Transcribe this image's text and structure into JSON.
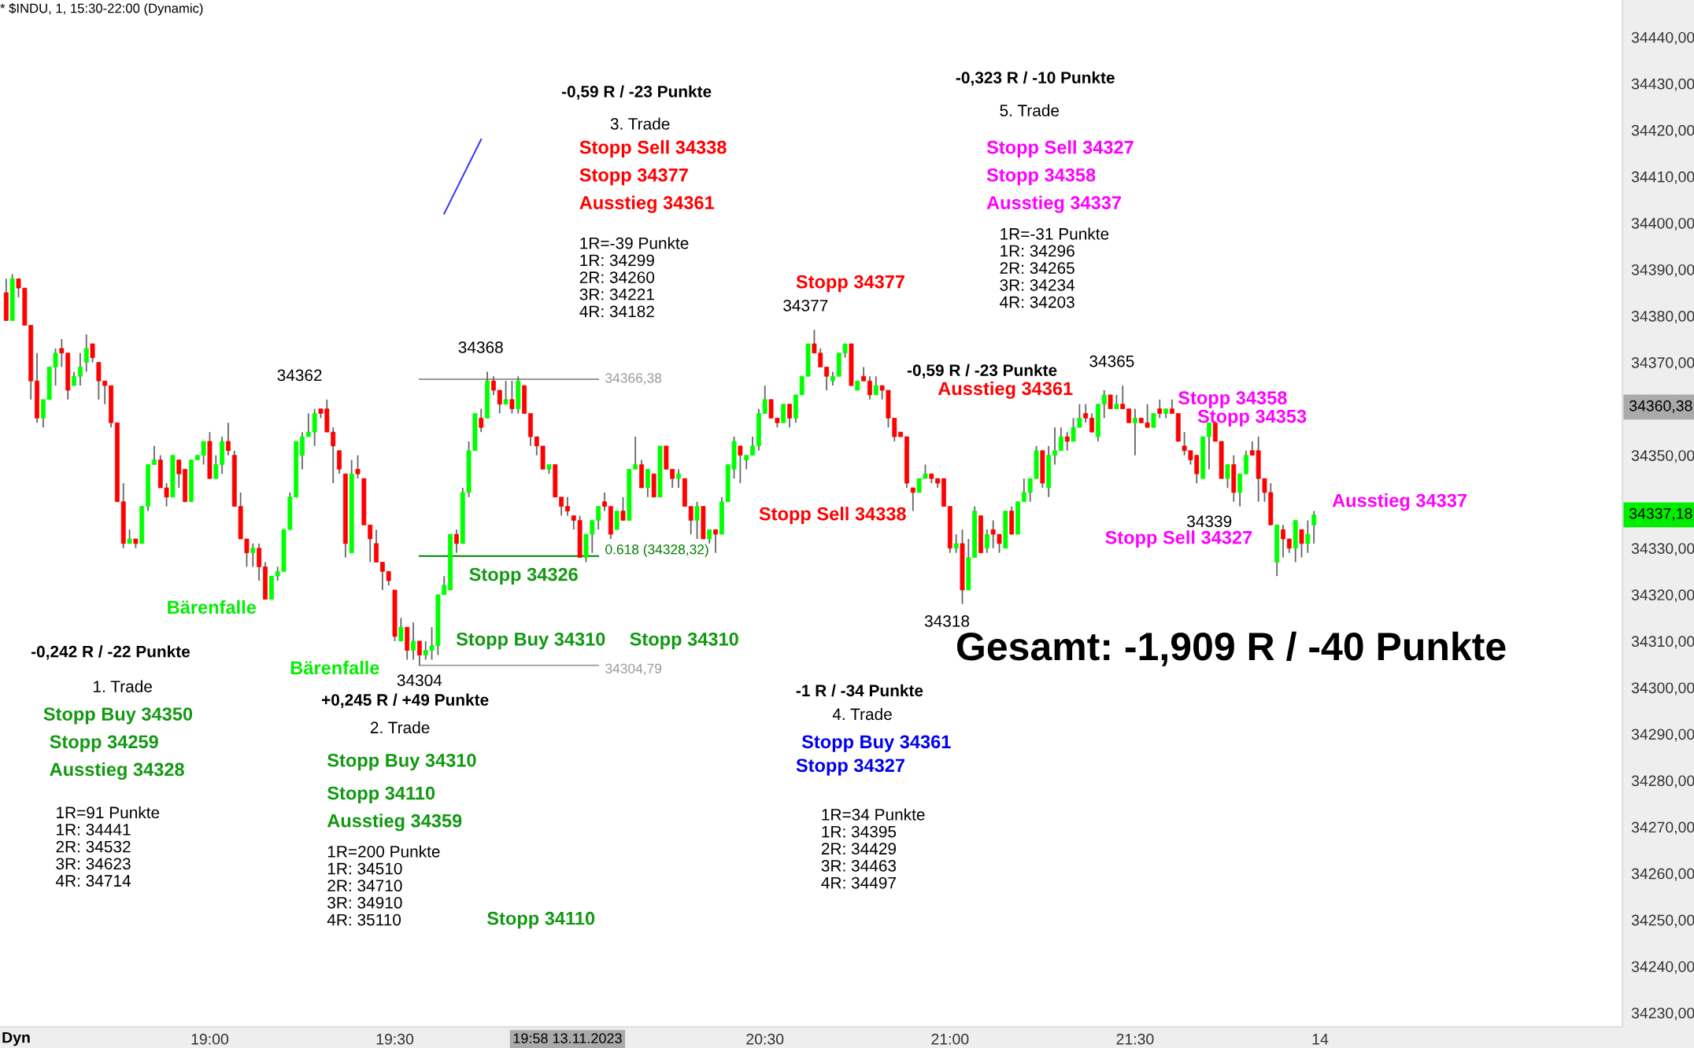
{
  "chart_data": {
    "type": "candlestick",
    "title": "* $INDU, 1, 15:30-22:00 (Dynamic)",
    "x": [
      "2023-11-13T18:27",
      "2023-11-13T18:28",
      "2023-11-13T18:29",
      "2023-11-13T18:30",
      "2023-11-13T18:31",
      "2023-11-13T18:32",
      "2023-11-13T18:33",
      "2023-11-13T18:34",
      "2023-11-13T18:35",
      "2023-11-13T18:36",
      "2023-11-13T18:37",
      "2023-11-13T18:38",
      "2023-11-13T18:39",
      "2023-11-13T18:40",
      "2023-11-13T18:41",
      "2023-11-13T18:42",
      "2023-11-13T18:43",
      "2023-11-13T18:44",
      "2023-11-13T18:45",
      "2023-11-13T18:46",
      "2023-11-13T18:47",
      "2023-11-13T18:48",
      "2023-11-13T18:49",
      "2023-11-13T18:50",
      "2023-11-13T18:51",
      "2023-11-13T18:52",
      "2023-11-13T18:53",
      "2023-11-13T18:54",
      "2023-11-13T18:55",
      "2023-11-13T18:56",
      "2023-11-13T18:57",
      "2023-11-13T18:58",
      "2023-11-13T18:59",
      "2023-11-13T19:00",
      "2023-11-13T19:01",
      "2023-11-13T19:02",
      "2023-11-13T19:03",
      "2023-11-13T19:04",
      "2023-11-13T19:05",
      "2023-11-13T19:06",
      "2023-11-13T19:07",
      "2023-11-13T19:08",
      "2023-11-13T19:09",
      "2023-11-13T19:10",
      "2023-11-13T19:11",
      "2023-11-13T19:12",
      "2023-11-13T19:13",
      "2023-11-13T19:14",
      "2023-11-13T19:15",
      "2023-11-13T19:16",
      "2023-11-13T19:17",
      "2023-11-13T19:18",
      "2023-11-13T19:19",
      "2023-11-13T19:20",
      "2023-11-13T19:21",
      "2023-11-13T19:22",
      "2023-11-13T19:23",
      "2023-11-13T19:24",
      "2023-11-13T19:25",
      "2023-11-13T19:26",
      "2023-11-13T19:27",
      "2023-11-13T19:28",
      "2023-11-13T19:29",
      "2023-11-13T19:30",
      "2023-11-13T19:31",
      "2023-11-13T19:32",
      "2023-11-13T19:33",
      "2023-11-13T19:34",
      "2023-11-13T19:35",
      "2023-11-13T19:36",
      "2023-11-13T19:37",
      "2023-11-13T19:38",
      "2023-11-13T19:39",
      "2023-11-13T19:40",
      "2023-11-13T19:41",
      "2023-11-13T19:42",
      "2023-11-13T19:43",
      "2023-11-13T19:44",
      "2023-11-13T19:45",
      "2023-11-13T19:46",
      "2023-11-13T19:47",
      "2023-11-13T19:48",
      "2023-11-13T19:49",
      "2023-11-13T19:50",
      "2023-11-13T19:51",
      "2023-11-13T19:52",
      "2023-11-13T19:53",
      "2023-11-13T19:54",
      "2023-11-13T19:55",
      "2023-11-13T19:56",
      "2023-11-13T19:57",
      "2023-11-13T19:58",
      "2023-11-13T19:59",
      "2023-11-13T20:00",
      "2023-11-13T20:01",
      "2023-11-13T20:02",
      "2023-11-13T20:03",
      "2023-11-13T20:04",
      "2023-11-13T20:05",
      "2023-11-13T20:06",
      "2023-11-13T20:07",
      "2023-11-13T20:08",
      "2023-11-13T20:09",
      "2023-11-13T20:10",
      "2023-11-13T20:11",
      "2023-11-13T20:12",
      "2023-11-13T20:13",
      "2023-11-13T20:14",
      "2023-11-13T20:15",
      "2023-11-13T20:16",
      "2023-11-13T20:17",
      "2023-11-13T20:18",
      "2023-11-13T20:19",
      "2023-11-13T20:20",
      "2023-11-13T20:21",
      "2023-11-13T20:22",
      "2023-11-13T20:23",
      "2023-11-13T20:24",
      "2023-11-13T20:25",
      "2023-11-13T20:26",
      "2023-11-13T20:27",
      "2023-11-13T20:28",
      "2023-11-13T20:29",
      "2023-11-13T20:30",
      "2023-11-13T20:31",
      "2023-11-13T20:32",
      "2023-11-13T20:33",
      "2023-11-13T20:34",
      "2023-11-13T20:35",
      "2023-11-13T20:36",
      "2023-11-13T20:37",
      "2023-11-13T20:38",
      "2023-11-13T20:39",
      "2023-11-13T20:40",
      "2023-11-13T20:41",
      "2023-11-13T20:42",
      "2023-11-13T20:43",
      "2023-11-13T20:44",
      "2023-11-13T20:45",
      "2023-11-13T20:46",
      "2023-11-13T20:47",
      "2023-11-13T20:48",
      "2023-11-13T20:49",
      "2023-11-13T20:50",
      "2023-11-13T20:51",
      "2023-11-13T20:52",
      "2023-11-13T20:53",
      "2023-11-13T20:54",
      "2023-11-13T20:55",
      "2023-11-13T20:56",
      "2023-11-13T20:57",
      "2023-11-13T20:58",
      "2023-11-13T20:59",
      "2023-11-13T21:00",
      "2023-11-13T21:01",
      "2023-11-13T21:02",
      "2023-11-13T21:03",
      "2023-11-13T21:04",
      "2023-11-13T21:05",
      "2023-11-13T21:06",
      "2023-11-13T21:07",
      "2023-11-13T21:08",
      "2023-11-13T21:09",
      "2023-11-13T21:10",
      "2023-11-13T21:11",
      "2023-11-13T21:12",
      "2023-11-13T21:13",
      "2023-11-13T21:14",
      "2023-11-13T21:15",
      "2023-11-13T21:16",
      "2023-11-13T21:17",
      "2023-11-13T21:18",
      "2023-11-13T21:19",
      "2023-11-13T21:20",
      "2023-11-13T21:21",
      "2023-11-13T21:22",
      "2023-11-13T21:23",
      "2023-11-13T21:24",
      "2023-11-13T21:25",
      "2023-11-13T21:26",
      "2023-11-13T21:27",
      "2023-11-13T21:28",
      "2023-11-13T21:29",
      "2023-11-13T21:30",
      "2023-11-13T21:31",
      "2023-11-13T21:32",
      "2023-11-13T21:33",
      "2023-11-13T21:34",
      "2023-11-13T21:35",
      "2023-11-13T21:36",
      "2023-11-13T21:37",
      "2023-11-13T21:38",
      "2023-11-13T21:39",
      "2023-11-13T21:40",
      "2023-11-13T21:41",
      "2023-11-13T21:42",
      "2023-11-13T21:43",
      "2023-11-13T21:44",
      "2023-11-13T21:45",
      "2023-11-13T21:46",
      "2023-11-13T21:47",
      "2023-11-13T21:48",
      "2023-11-13T21:49",
      "2023-11-13T21:50",
      "2023-11-13T21:51",
      "2023-11-13T21:52",
      "2023-11-13T21:53",
      "2023-11-13T21:54",
      "2023-11-13T21:55",
      "2023-11-13T21:56",
      "2023-11-13T21:57",
      "2023-11-13T21:58",
      "2023-11-13T21:59"
    ],
    "ohlc": [
      [
        34385,
        34388,
        34379,
        34379
      ],
      [
        34379,
        34389,
        34379,
        34388
      ],
      [
        34388,
        34388,
        34384,
        34386
      ],
      [
        34386,
        34386,
        34378,
        34378
      ],
      [
        34378,
        34378,
        34362,
        34366
      ],
      [
        34366,
        34372,
        34357,
        34358
      ],
      [
        34358,
        34362,
        34356,
        34362
      ],
      [
        34362,
        34369,
        34362,
        34369
      ],
      [
        34369,
        34373,
        34365,
        34372
      ],
      [
        34373,
        34375,
        34369,
        34372
      ],
      [
        34372,
        34372,
        34362,
        34364
      ],
      [
        34365,
        34368,
        34365,
        34367
      ],
      [
        34367,
        34372,
        34365,
        34369
      ],
      [
        34370,
        34376,
        34368,
        34373
      ],
      [
        34374,
        34374,
        34370,
        34371
      ],
      [
        34370,
        34370,
        34362,
        34366
      ],
      [
        34366,
        34366,
        34361,
        34365
      ],
      [
        34365,
        34365,
        34356,
        34357
      ],
      [
        34357,
        34357,
        34340,
        34340
      ],
      [
        34340,
        34344,
        34330,
        34331
      ],
      [
        34331,
        34334,
        34331,
        34332
      ],
      [
        34332,
        34332,
        34330,
        34331
      ],
      [
        34331,
        34339,
        34331,
        34339
      ],
      [
        34339,
        34348,
        34338,
        34348
      ],
      [
        34348,
        34352,
        34348,
        34349
      ],
      [
        34349,
        34350,
        34343,
        34343
      ],
      [
        34343,
        34344,
        34339,
        34341
      ],
      [
        34341,
        34350,
        34341,
        34350
      ],
      [
        34349,
        34349,
        34343,
        34346
      ],
      [
        34347,
        34347,
        34340,
        34340
      ],
      [
        34340,
        34349,
        34340,
        34349
      ],
      [
        34349,
        34350,
        34349,
        34350
      ],
      [
        34350,
        34353,
        34348,
        34353
      ],
      [
        34353,
        34355,
        34345,
        34345
      ],
      [
        34345,
        34350,
        34345,
        34348
      ],
      [
        34348,
        34354,
        34346,
        34353
      ],
      [
        34353,
        34357,
        34350,
        34351
      ],
      [
        34350,
        34351,
        34339,
        34339
      ],
      [
        34339,
        34342,
        34332,
        34332
      ],
      [
        34332,
        34332,
        34326,
        34329
      ],
      [
        34329,
        34331,
        34326,
        34330
      ],
      [
        34330,
        34331,
        34323,
        34326
      ],
      [
        34326,
        34327,
        34319,
        34319
      ],
      [
        34319,
        34324,
        34319,
        34324
      ],
      [
        34324,
        34326,
        34323,
        34325
      ],
      [
        34325,
        34334,
        34325,
        34334
      ],
      [
        34334,
        34342,
        34334,
        34341
      ],
      [
        34341,
        34353,
        34341,
        34353
      ],
      [
        34350,
        34355,
        34347,
        34354
      ],
      [
        34354,
        34359,
        34354,
        34355
      ],
      [
        34355,
        34360,
        34352,
        34359
      ],
      [
        34360,
        34360,
        34358,
        34359
      ],
      [
        34360,
        34362,
        34355,
        34355
      ],
      [
        34355,
        34356,
        34344,
        34352
      ],
      [
        34351,
        34351,
        34346,
        34347
      ],
      [
        34346,
        34346,
        34328,
        34331
      ],
      [
        34329,
        34349,
        34329,
        34346
      ],
      [
        34347,
        34350,
        34345,
        34346
      ],
      [
        34345,
        34345,
        34335,
        34335
      ],
      [
        34335,
        34335,
        34327,
        34332
      ],
      [
        34331,
        34334,
        34327,
        34327
      ],
      [
        34327,
        34327,
        34321,
        34325
      ],
      [
        34325,
        34325,
        34322,
        34323
      ],
      [
        34321,
        34321,
        34310,
        34311
      ],
      [
        34310,
        34315,
        34310,
        34313
      ],
      [
        34313,
        34313,
        34306,
        34308
      ],
      [
        34308,
        34314,
        34306,
        34310
      ],
      [
        34310,
        34310,
        34304.79,
        34307
      ],
      [
        34307,
        34310,
        34306,
        34308
      ],
      [
        34308,
        34313,
        34306,
        34309
      ],
      [
        34309,
        34320,
        34307,
        34320
      ],
      [
        34320,
        34324,
        34320,
        34322
      ],
      [
        34321,
        34333,
        34321,
        34333
      ],
      [
        34333,
        34334,
        34329,
        34331
      ],
      [
        34331,
        34343,
        34331,
        34342
      ],
      [
        34342,
        34353,
        34341,
        34351
      ],
      [
        34351,
        34359,
        34351,
        34359
      ],
      [
        34358,
        34360,
        34355,
        34356
      ],
      [
        34358,
        34368,
        34358,
        34366
      ],
      [
        34366,
        34367,
        34363,
        34364
      ],
      [
        34364,
        34364,
        34359,
        34361
      ],
      [
        34361,
        34366,
        34361,
        34362
      ],
      [
        34362,
        34366,
        34359,
        34360
      ],
      [
        34360,
        34367,
        34359,
        34366
      ],
      [
        34365,
        34365,
        34359,
        34359
      ],
      [
        34359,
        34359,
        34352,
        34354
      ],
      [
        34354,
        34354,
        34350,
        34352
      ],
      [
        34352,
        34352,
        34347,
        34347
      ],
      [
        34347,
        34348,
        34346,
        34348
      ],
      [
        34348,
        34348,
        34341,
        34341
      ],
      [
        34341,
        34341,
        34337,
        34339
      ],
      [
        34339,
        34341,
        34337,
        34338
      ],
      [
        34337,
        34337,
        34334,
        34336
      ],
      [
        34336,
        34337,
        34328,
        34328
      ],
      [
        34328,
        34333,
        34327,
        34333
      ],
      [
        34333,
        34336,
        34329,
        34336
      ],
      [
        34336,
        34339,
        34334,
        34339
      ],
      [
        34340,
        34342,
        34338,
        34339
      ],
      [
        34339,
        34339,
        34332,
        34333
      ],
      [
        34334,
        34338,
        34334,
        34338
      ],
      [
        34338,
        34341,
        34336,
        34336
      ],
      [
        34336,
        34347,
        34336,
        34347
      ],
      [
        34347,
        34354,
        34347,
        34348
      ],
      [
        34348,
        34349,
        34343,
        34343
      ],
      [
        34343,
        34347,
        34341,
        34347
      ],
      [
        34346,
        34346,
        34341,
        34341
      ],
      [
        34341,
        34352,
        34341,
        34352
      ],
      [
        34352,
        34352,
        34347,
        34347
      ],
      [
        34347,
        34347,
        34343,
        34345
      ],
      [
        34345,
        34347,
        34343,
        34346
      ],
      [
        34345,
        34345,
        34339,
        34339
      ],
      [
        34339,
        34339,
        34333,
        34336
      ],
      [
        34336,
        34340,
        34332,
        34339
      ],
      [
        34339,
        34339,
        34332,
        34332
      ],
      [
        34332,
        34334,
        34331,
        34334
      ],
      [
        34334,
        34334,
        34329,
        34333
      ],
      [
        34333,
        34341,
        34333,
        34340
      ],
      [
        34340,
        34348,
        34340,
        34348
      ],
      [
        34347,
        34354,
        34345,
        34353
      ],
      [
        34352,
        34352,
        34344,
        34350
      ],
      [
        34349,
        34350,
        34347,
        34350
      ],
      [
        34350,
        34354,
        34350,
        34352
      ],
      [
        34352,
        34360,
        34351,
        34359
      ],
      [
        34359,
        34365,
        34359,
        34362
      ],
      [
        34362,
        34362,
        34358,
        34358
      ],
      [
        34358,
        34358,
        34356,
        34357
      ],
      [
        34357,
        34361,
        34357,
        34361
      ],
      [
        34361,
        34361,
        34356,
        34358
      ],
      [
        34358,
        34363,
        34357,
        34363
      ],
      [
        34363,
        34367,
        34363,
        34367
      ],
      [
        34367,
        34374,
        34367,
        34374
      ],
      [
        34374,
        34377,
        34372,
        34372
      ],
      [
        34372,
        34373,
        34369,
        34369
      ],
      [
        34369,
        34369,
        34364,
        34367
      ],
      [
        34366,
        34368,
        34365,
        34367
      ],
      [
        34367,
        34372,
        34367,
        34372
      ],
      [
        34372,
        34374,
        34371,
        34374
      ],
      [
        34374,
        34374,
        34365,
        34365
      ],
      [
        34364,
        34366,
        34364,
        34366
      ],
      [
        34367,
        34369,
        34366,
        34366
      ],
      [
        34366,
        34367,
        34362,
        34363
      ],
      [
        34363,
        34367,
        34363,
        34365
      ],
      [
        34365,
        34365,
        34362,
        34364
      ],
      [
        34364,
        34364,
        34356,
        34358
      ],
      [
        34358,
        34358,
        34353,
        34354
      ],
      [
        34355,
        34355,
        34354,
        34354
      ],
      [
        34354,
        34354,
        34343,
        34344
      ],
      [
        34343,
        34343,
        34338,
        34342
      ],
      [
        34342,
        34345,
        34342,
        34345
      ],
      [
        34345,
        34348,
        34345,
        34346
      ],
      [
        34346,
        34346,
        34344,
        34345
      ],
      [
        34345,
        34345,
        34343,
        34344
      ],
      [
        34345,
        34345,
        34339,
        34339
      ],
      [
        34339,
        34339,
        34329,
        34330
      ],
      [
        34330,
        34333,
        34329,
        34331
      ],
      [
        34331,
        34334,
        34318,
        34321
      ],
      [
        34321,
        34332,
        34321,
        34328
      ],
      [
        34328,
        34339,
        34328,
        34338
      ],
      [
        34337,
        34337,
        34329,
        34329
      ],
      [
        34330,
        34334,
        34329,
        34333
      ],
      [
        34334,
        34336,
        34330,
        34333
      ],
      [
        34333,
        34333,
        34329,
        34331
      ],
      [
        34330,
        34338,
        34330,
        34338
      ],
      [
        34338,
        34339,
        34333,
        34333
      ],
      [
        34333,
        34340,
        34333,
        34340
      ],
      [
        34340,
        34345,
        34340,
        34342
      ],
      [
        34342,
        34345,
        34340,
        34345
      ],
      [
        34345,
        34352,
        34345,
        34351
      ],
      [
        34351,
        34351,
        34343,
        34344
      ],
      [
        34343,
        34352,
        34341,
        34350
      ],
      [
        34350,
        34356,
        34348,
        34351
      ],
      [
        34351,
        34356,
        34351,
        34354
      ],
      [
        34354,
        34355,
        34351,
        34353
      ],
      [
        34353,
        34358,
        34353,
        34356
      ],
      [
        34356,
        34361,
        34356,
        34358
      ],
      [
        34359,
        34361,
        34357,
        34358
      ],
      [
        34358,
        34359,
        34355,
        34355
      ],
      [
        34354,
        34361,
        34353,
        34361
      ],
      [
        34361,
        34364,
        34358,
        34363
      ],
      [
        34363,
        34363,
        34360,
        34360
      ],
      [
        34360,
        34363,
        34360,
        34361
      ],
      [
        34361,
        34365,
        34360,
        34360
      ],
      [
        34360,
        34360,
        34357,
        34357
      ],
      [
        34357,
        34360,
        34350,
        34358
      ],
      [
        34358,
        34358,
        34357,
        34357
      ],
      [
        34357,
        34361,
        34356,
        34356
      ],
      [
        34356,
        34359,
        34356,
        34359
      ],
      [
        34360,
        34362,
        34358,
        34359
      ],
      [
        34359,
        34360,
        34358,
        34360
      ],
      [
        34360,
        34362,
        34359,
        34359
      ],
      [
        34359,
        34359,
        34353,
        34353
      ],
      [
        34352,
        34355,
        34350,
        34351
      ],
      [
        34351,
        34351,
        34348,
        34349
      ],
      [
        34350,
        34350,
        34344,
        34346
      ],
      [
        34345,
        34354,
        34345,
        34354
      ],
      [
        34354,
        34357,
        34347,
        34357
      ],
      [
        34357,
        34357,
        34353,
        34353
      ],
      [
        34353,
        34353,
        34345,
        34345
      ],
      [
        34345,
        34348,
        34343,
        34348
      ],
      [
        34348,
        34350,
        34340,
        34342
      ],
      [
        34342,
        34346,
        34339,
        34346
      ],
      [
        34346,
        34351,
        34346,
        34350
      ],
      [
        34351,
        34353,
        34350,
        34350
      ],
      [
        34351,
        34354,
        34340,
        34345
      ],
      [
        34345,
        34345,
        34340,
        34342
      ],
      [
        34342,
        34344,
        34335,
        34335
      ],
      [
        34327,
        34335,
        34324,
        34335
      ],
      [
        34334,
        34335,
        34328,
        34332
      ],
      [
        34332,
        34332,
        34329,
        34330
      ],
      [
        34330,
        34336,
        34327,
        34336
      ],
      [
        34334,
        34334,
        34328,
        34331
      ],
      [
        34331,
        34336,
        34329,
        34333
      ],
      [
        34335,
        34338,
        34331,
        34337.18
      ]
    ],
    "colors": [
      "#ff0000",
      "#00ff00",
      "#ff0000",
      "#ff0000",
      "#ff0000",
      "#ff0000",
      "#00ff00",
      "#00ff00",
      "#00ff00",
      "#ff0000",
      "#ff0000",
      "#00ff00",
      "#00ff00",
      "#00ff00",
      "#ff0000",
      "#ff0000",
      "#ff0000",
      "#ff0000",
      "#ff0000",
      "#ff0000",
      "#00ff00",
      "#ff0000",
      "#00ff00",
      "#00ff00",
      "#00ff00",
      "#ff0000",
      "#ff0000",
      "#00ff00",
      "#ff0000",
      "#ff0000",
      "#00ff00",
      "#00ff00",
      "#00ff00",
      "#ff0000",
      "#00ff00",
      "#00ff00",
      "#ff0000",
      "#ff0000",
      "#ff0000",
      "#ff0000",
      "#00ff00",
      "#ff0000",
      "#ff0000",
      "#00ff00",
      "#00ff00",
      "#00ff00",
      "#00ff00",
      "#00ff00",
      "#00ff00",
      "#00ff00",
      "#00ff00",
      "#ff0000",
      "#ff0000",
      "#ff0000",
      "#ff0000",
      "#ff0000",
      "#00ff00",
      "#ff0000",
      "#ff0000",
      "#ff0000",
      "#ff0000",
      "#ff0000",
      "#ff0000",
      "#ff0000",
      "#00ff00",
      "#ff0000",
      "#00ff00",
      "#ff0000",
      "#00ff00",
      "#00ff00",
      "#00ff00",
      "#00ff00",
      "#00ff00",
      "#ff0000",
      "#00ff00",
      "#00ff00",
      "#00ff00",
      "#ff0000",
      "#00ff00",
      "#ff0000",
      "#ff0000",
      "#00ff00",
      "#ff0000",
      "#00ff00",
      "#ff0000",
      "#ff0000",
      "#ff0000",
      "#ff0000",
      "#00ff00",
      "#ff0000",
      "#ff0000",
      "#ff0000",
      "#ff0000",
      "#ff0000",
      "#00ff00",
      "#00ff00",
      "#00ff00",
      "#ff0000",
      "#ff0000",
      "#00ff00",
      "#ff0000",
      "#00ff00",
      "#00ff00",
      "#ff0000",
      "#00ff00",
      "#ff0000",
      "#00ff00",
      "#ff0000",
      "#ff0000",
      "#00ff00",
      "#ff0000",
      "#ff0000",
      "#00ff00",
      "#ff0000",
      "#00ff00",
      "#ff0000",
      "#00ff00",
      "#00ff00",
      "#00ff00",
      "#ff0000",
      "#00ff00",
      "#00ff00",
      "#00ff00",
      "#00ff00",
      "#ff0000",
      "#ff0000",
      "#00ff00",
      "#ff0000",
      "#00ff00",
      "#00ff00",
      "#00ff00",
      "#ff0000",
      "#ff0000",
      "#ff0000",
      "#00ff00",
      "#00ff00",
      "#00ff00",
      "#ff0000",
      "#00ff00",
      "#ff0000",
      "#ff0000",
      "#00ff00",
      "#ff0000",
      "#ff0000",
      "#ff0000",
      "#ff0000",
      "#ff0000",
      "#ff0000",
      "#00ff00",
      "#00ff00",
      "#ff0000",
      "#ff0000",
      "#ff0000",
      "#ff0000",
      "#00ff00",
      "#ff0000",
      "#00ff00",
      "#00ff00",
      "#ff0000",
      "#00ff00",
      "#ff0000",
      "#ff0000",
      "#00ff00",
      "#ff0000",
      "#00ff00",
      "#00ff00",
      "#00ff00",
      "#00ff00",
      "#ff0000",
      "#00ff00",
      "#00ff00",
      "#00ff00",
      "#ff0000",
      "#00ff00",
      "#00ff00",
      "#ff0000",
      "#ff0000",
      "#00ff00",
      "#00ff00",
      "#ff0000",
      "#00ff00",
      "#ff0000",
      "#ff0000",
      "#00ff00",
      "#ff0000",
      "#ff0000",
      "#00ff00",
      "#ff0000",
      "#00ff00",
      "#ff0000",
      "#ff0000",
      "#ff0000",
      "#ff0000",
      "#ff0000",
      "#00ff00",
      "#00ff00",
      "#ff0000",
      "#ff0000",
      "#00ff00",
      "#ff0000",
      "#00ff00",
      "#00ff00",
      "#ff0000",
      "#ff0000",
      "#ff0000",
      "#ff0000",
      "#00ff00",
      "#ff0000",
      "#ff0000",
      "#00ff00",
      "#ff0000",
      "#00ff00",
      "#00ff00"
    ],
    "series": [
      {
        "type": "line",
        "x": [
          "2023-11-13T19:34",
          "2023-11-13T20:03"
        ],
        "values": [
          34366.38,
          34366.38
        ],
        "color": "#999999"
      },
      {
        "type": "line",
        "x": [
          "2023-11-13T19:34",
          "2023-11-13T20:03"
        ],
        "values": [
          34328.32,
          34328.32
        ],
        "color": "#008000"
      },
      {
        "type": "line",
        "x": [
          "2023-11-13T19:34",
          "2023-11-13T20:03"
        ],
        "values": [
          34304.79,
          34304.79
        ],
        "color": "#999999"
      },
      {
        "type": "line",
        "x": [
          "2023-11-13T19:38",
          "2023-11-13T19:44"
        ],
        "values": [
          34402,
          34418
        ],
        "color": "#3333ff"
      }
    ],
    "xlim": [
      "2023-11-13T18:26",
      "2023-11-13T22:49"
    ],
    "xticks": [
      {
        "value": "2023-11-13T19:00",
        "label": "19:00"
      },
      {
        "value": "2023-11-13T19:30",
        "label": "19:30"
      },
      {
        "value": "2023-11-13T20:30",
        "label": "20:30"
      },
      {
        "value": "2023-11-13T21:00",
        "label": "21:00"
      },
      {
        "value": "2023-11-13T21:30",
        "label": "21:30"
      },
      {
        "value": "2023-11-13T22:00",
        "label": "14"
      }
    ],
    "ylim": [
      34227,
      34448
    ],
    "yticks": [
      {
        "value": 34230,
        "label": "34230,00"
      },
      {
        "value": 34240,
        "label": "34240,00"
      },
      {
        "value": 34250,
        "label": "34250,00"
      },
      {
        "value": 34260,
        "label": "34260,00"
      },
      {
        "value": 34270,
        "label": "34270,00"
      },
      {
        "value": 34280,
        "label": "34280,00"
      },
      {
        "value": 34290,
        "label": "34290,00"
      },
      {
        "value": 34300,
        "label": "34300,00"
      },
      {
        "value": 34310,
        "label": "34310,00"
      },
      {
        "value": 34320,
        "label": "34320,00"
      },
      {
        "value": 34330,
        "label": "34330,00"
      },
      {
        "value": 34350,
        "label": "34350,00"
      },
      {
        "value": 34370,
        "label": "34370,00"
      },
      {
        "value": 34380,
        "label": "34380,00"
      },
      {
        "value": 34390,
        "label": "34390,00"
      },
      {
        "value": 34400,
        "label": "34400,00"
      },
      {
        "value": 34410,
        "label": "34410,00"
      },
      {
        "value": 34420,
        "label": "34420,00"
      },
      {
        "value": 34430,
        "label": "34430,00"
      },
      {
        "value": 34440,
        "label": "34440,00"
      }
    ],
    "grid": false,
    "legend": false,
    "annotations": [
      "-0,242 R / -22 Punkte",
      "1. Trade",
      "Stopp Buy 34350",
      "Stopp 34259",
      "Ausstieg 34328",
      "1R=91 Punkte\n1R: 34441\n2R: 34532\n3R: 34623\n4R: 34714",
      "+0,245 R / +49 Punkte",
      "2. Trade",
      "Stopp Buy 34310",
      "Stopp 34110",
      "Ausstieg 34359",
      "1R=200 Punkte\n1R: 34510\n2R: 34710\n3R: 34910\n4R: 35110",
      "Stopp 34110",
      "Stopp Buy 34310",
      "Stopp 34310",
      "Stopp 34326",
      "Bärenfalle",
      "Bärenfalle",
      "-0,59 R / -23 Punkte",
      "3. Trade",
      "Stopp Sell 34338",
      "Stopp 34377",
      "Ausstieg 34361",
      "1R=-39 Punkte\n1R: 34299\n2R: 34260\n3R: 34221\n4R: 34182",
      "Stopp 34377",
      "Stopp Sell 34338",
      "-0,59 R / -23 Punkte",
      "Ausstieg 34361",
      "-1 R / -34 Punkte",
      "4. Trade",
      "Stopp Buy 34361",
      "Stopp 34327",
      "1R=34 Punkte\n1R: 34395\n2R: 34429\n3R: 34463\n4R: 34497",
      "-0,323 R / -10 Punkte",
      "5. Trade",
      "Stopp Sell 34327",
      "Stopp 34358",
      "Ausstieg 34337",
      "1R=-31 Punkte\n1R: 34296\n2R: 34265\n3R: 34234\n4R: 34203",
      "Stopp 34358",
      "Stopp 34353",
      "Stopp Sell 34327",
      "Ausstieg 34337",
      "Gesamt: -1,909 R / -40 Punkte",
      "34360,38",
      "19:58 13.11.2023",
      "Dyn",
      "34337,18",
      {
        "text": "34362",
        "x": "2023-11-13T19:19",
        "y": 34362
      },
      {
        "text": "34368",
        "x": "2023-11-13T19:45",
        "y": 34368
      },
      {
        "text": "34304",
        "x": "2023-11-13T19:34",
        "y": 34304.79
      },
      {
        "text": "34377",
        "x": "2023-11-13T20:38",
        "y": 34377
      },
      {
        "text": "34318",
        "x": "2023-11-13T21:02",
        "y": 34318
      },
      {
        "text": "34365",
        "x": "2023-11-13T21:28",
        "y": 34365
      },
      {
        "text": "34339",
        "x": "2023-11-13T21:47",
        "y": 34339
      },
      {
        "text": "34366,38",
        "x": "2023-11-13T20:03",
        "y": 34366.38
      },
      {
        "text": "0.618 (34328,32)",
        "x": "2023-11-13T20:03",
        "y": 34328.32
      },
      {
        "text": "34304,79",
        "x": "2023-11-13T20:03",
        "y": 34304.79
      }
    ]
  }
}
